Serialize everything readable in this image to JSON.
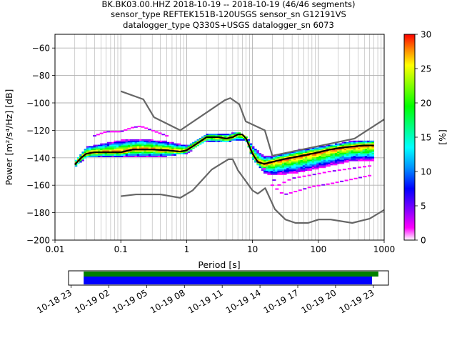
{
  "title_lines": [
    "BK.BK03.00.HHZ   2018-10-19 -- 2018-10-19  (46/46 segments)",
    "sensor_type REFTEK151B-120USGS sensor_sn G12191VS",
    "datalogger_type Q330S+USGS datalogger_sn 6073"
  ],
  "chart_data": [
    {
      "type": "heatmap",
      "xlabel": "Period [s]",
      "ylabel": "Power [m²/s⁴/Hz] [dB]",
      "xscale": "log",
      "xlim": [
        0.01,
        1000
      ],
      "ylim": [
        -200,
        -50
      ],
      "xticks": [
        0.01,
        0.1,
        1,
        10,
        100,
        1000
      ],
      "xtick_labels": [
        "0.01",
        "0.1",
        "1",
        "10",
        "100",
        "1000"
      ],
      "yticks": [
        -200,
        -180,
        -160,
        -140,
        -120,
        -100,
        -80,
        -60
      ],
      "ytick_labels": [
        "−200",
        "−180",
        "−160",
        "−140",
        "−120",
        "−100",
        "−80",
        "−60"
      ],
      "grid": true,
      "colorbar": {
        "label": "[%]",
        "range": [
          0,
          30
        ],
        "ticks": [
          0,
          5,
          10,
          15,
          20,
          25,
          30
        ],
        "colormap": [
          "#ffffff",
          "#ff00ff",
          "#8000ff",
          "#0000ff",
          "#0090ff",
          "#00ffff",
          "#00ff80",
          "#00ff00",
          "#80ff00",
          "#ffff00",
          "#ff8000",
          "#ff0000"
        ]
      },
      "noise_model_color": "#666666",
      "mode_color": "#000000",
      "high_noise_model": {
        "period": [
          0.1,
          0.22,
          0.32,
          0.8,
          3.8,
          4.6,
          6.3,
          7.9,
          15.4,
          20,
          354.8,
          1000
        ],
        "power": [
          -91.5,
          -97.4,
          -110.5,
          -120,
          -98,
          -96.5,
          -101,
          -113.5,
          -120,
          -138.5,
          -126,
          -112
        ]
      },
      "low_noise_model": {
        "period": [
          0.1,
          0.17,
          0.4,
          0.8,
          1.24,
          2.4,
          4.3,
          5,
          6,
          10,
          12,
          15.6,
          21.9,
          31.6,
          45,
          70,
          101,
          154,
          328,
          600,
          1000
        ],
        "power": [
          -168,
          -166.7,
          -166.7,
          -169.2,
          -163.7,
          -148.6,
          -141.1,
          -141.1,
          -149,
          -163.8,
          -166.2,
          -162.1,
          -177.5,
          -185,
          -187.5,
          -187.5,
          -185,
          -185,
          -187.5,
          -184.4,
          -178
        ]
      },
      "mode_curve": {
        "period": [
          0.02,
          0.025,
          0.03,
          0.04,
          0.06,
          0.1,
          0.15,
          0.2,
          0.3,
          0.5,
          0.8,
          1.0,
          1.3,
          2,
          3,
          4,
          5,
          6,
          7,
          8,
          10,
          12,
          15,
          20,
          30,
          50,
          80,
          100,
          150,
          200,
          300,
          500,
          700
        ],
        "power": [
          -145,
          -140,
          -137,
          -136,
          -136,
          -136,
          -134,
          -134,
          -134,
          -134.5,
          -135.5,
          -134.5,
          -131,
          -125,
          -125,
          -126,
          -125,
          -123,
          -123,
          -126,
          -137,
          -143,
          -144.5,
          -143,
          -141,
          -139,
          -137,
          -136,
          -134,
          -133,
          -132,
          -131,
          -131
        ]
      },
      "upper_spread_curve": {
        "period": [
          0.02,
          0.03,
          0.06,
          0.1,
          0.2,
          0.5,
          1,
          2,
          4,
          6,
          8,
          10,
          15,
          20,
          50,
          100,
          300,
          700
        ],
        "power": [
          -142,
          -132,
          -129,
          -127,
          -126,
          -128,
          -131,
          -123,
          -123,
          -121,
          -124,
          -131,
          -139,
          -139,
          -134,
          -132,
          -128,
          -127
        ]
      },
      "lower_spread_curve": {
        "period": [
          0.02,
          0.03,
          0.06,
          0.1,
          0.2,
          0.5,
          1,
          2,
          4,
          6,
          8,
          10,
          15,
          20,
          50,
          100,
          300,
          700
        ],
        "power": [
          -147,
          -140,
          -139,
          -139,
          -139,
          -139,
          -137,
          -128,
          -129,
          -127,
          -128,
          -141,
          -151,
          -153,
          -151,
          -148,
          -143,
          -142
        ]
      },
      "outlier_curves": [
        {
          "period": [
            0.04,
            0.06,
            0.1,
            0.15,
            0.2,
            0.3,
            0.5
          ],
          "power": [
            -124,
            -121,
            -121,
            -118,
            -117,
            -120,
            -124
          ]
        },
        {
          "period": [
            20,
            30,
            50,
            80,
            150,
            300,
            600
          ],
          "power": [
            -160,
            -167,
            -164,
            -161,
            -159,
            -156,
            -153
          ]
        },
        {
          "period": [
            15,
            25,
            40,
            70,
            150,
            300,
            600
          ],
          "power": [
            -148,
            -160,
            -155,
            -153,
            -150,
            -148,
            -146
          ]
        }
      ]
    },
    {
      "type": "timeline",
      "xtick_labels": [
        "10-18 23",
        "10-19 02",
        "10-19 05",
        "10-19 08",
        "10-19 11",
        "10-19 14",
        "10-19 17",
        "10-19 20",
        "10-19 23"
      ],
      "x_hours": [
        -1,
        2,
        5,
        8,
        11,
        14,
        17,
        20,
        23
      ],
      "xlim_hours": [
        -1.2,
        24.2
      ],
      "bars": [
        {
          "color": "#008000",
          "start_hour": 0.0,
          "end_hour": 23.4
        },
        {
          "color": "#0000ff",
          "start_hour": 0.0,
          "end_hour": 22.9
        }
      ]
    }
  ]
}
